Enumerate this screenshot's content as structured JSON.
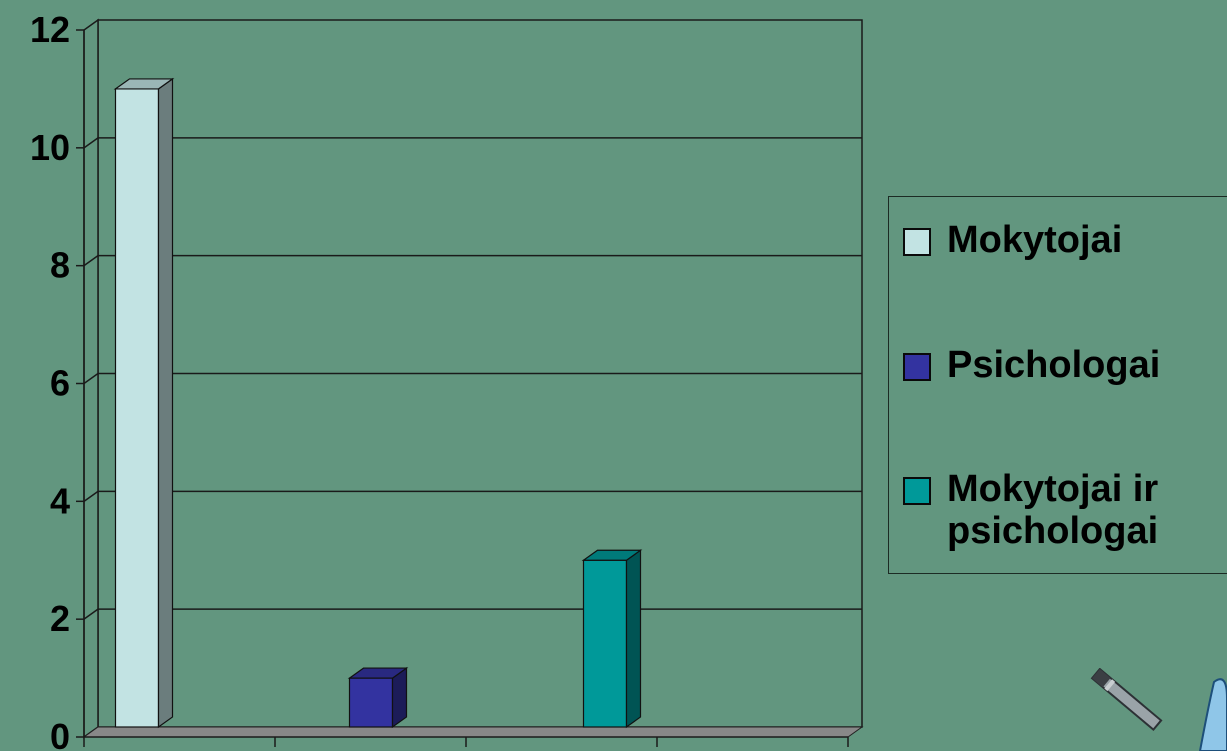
{
  "chart_data": {
    "type": "bar",
    "categories": [
      "",
      "",
      ""
    ],
    "series": [
      {
        "name": "Mokytojai",
        "color": "#c2e3e3",
        "values": [
          11,
          0,
          0
        ]
      },
      {
        "name": "Psichologai",
        "color": "#3333a0",
        "values": [
          0,
          1,
          0
        ]
      },
      {
        "name": "Mokytojai ir psichologai",
        "color": "#009999",
        "values": [
          0,
          0,
          3
        ]
      }
    ],
    "y_ticks": [
      "0",
      "2",
      "4",
      "6",
      "8",
      "10",
      "12"
    ],
    "ylim": [
      0,
      12
    ],
    "grid": true,
    "style": "3d-column",
    "legend_position": "right",
    "title": "",
    "xlabel": "",
    "ylabel": ""
  },
  "colors": {
    "background": "#62967f",
    "gridline": "#1a1a1a"
  },
  "decorations": {
    "clip_art_icon": "pencil-icon"
  }
}
